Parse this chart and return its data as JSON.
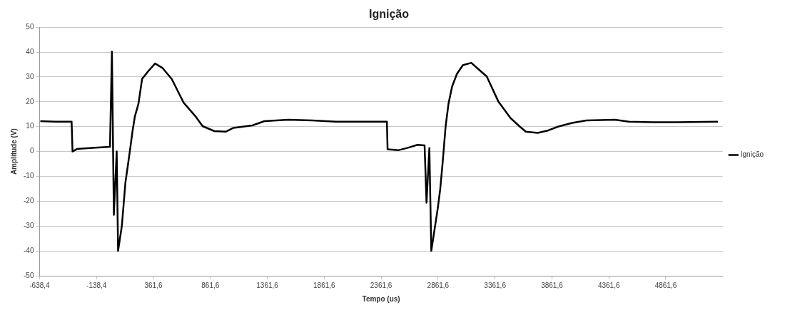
{
  "chart_data": {
    "type": "line",
    "title": "Ignição",
    "xlabel": "Tempo (us)",
    "ylabel": "Amplitude (V)",
    "x": [
      -632,
      -500,
      -357,
      -349,
      -311,
      -150,
      -20,
      -3,
      14,
      39,
      51,
      84,
      116,
      139,
      160,
      178,
      199,
      230,
      262,
      314,
      376,
      439,
      522,
      626,
      730,
      793,
      897,
      1000,
      1064,
      1230,
      1336,
      1546,
      1756,
      1966,
      2176,
      2412,
      2418,
      2512,
      2596,
      2680,
      2743,
      2760,
      2785,
      2802,
      2859,
      2880,
      2901,
      2928,
      2953,
      2985,
      3027,
      3079,
      3153,
      3226,
      3289,
      3390,
      3497,
      3580,
      3632,
      3737,
      3830,
      3914,
      4039,
      4164,
      4414,
      4538,
      4747,
      4955,
      5320
    ],
    "series": [
      {
        "name": "Ignição",
        "color": "#000000",
        "values": [
          12.2,
          12,
          12,
          0,
          1,
          1.5,
          1.9,
          40.2,
          -25.5,
          0,
          -40,
          -30,
          -12.3,
          -5,
          2,
          8.2,
          14.2,
          19.2,
          29.2,
          32.2,
          35.4,
          33.7,
          29.2,
          19.7,
          14.2,
          10.2,
          8.2,
          8,
          9.5,
          10.5,
          12.2,
          12.8,
          12.5,
          12,
          12,
          12,
          0.9,
          0.5,
          1.5,
          2.7,
          2.5,
          -20.6,
          1.4,
          -40,
          -22.8,
          -15.3,
          -4.8,
          10.2,
          19.2,
          26.2,
          31.2,
          34.7,
          35.7,
          32.7,
          30.2,
          20.2,
          13.5,
          10,
          8,
          7.5,
          8.5,
          10,
          11.5,
          12.5,
          12.8,
          12,
          11.8,
          11.8,
          12
        ]
      }
    ],
    "xlim": [
      -638.4,
      5361.6
    ],
    "xticks": [
      {
        "value": -638.4,
        "label": "-638,4"
      },
      {
        "value": -138.4,
        "label": "-138,4"
      },
      {
        "value": 361.6,
        "label": "361,6"
      },
      {
        "value": 861.6,
        "label": "861,6"
      },
      {
        "value": 1361.6,
        "label": "1361,6"
      },
      {
        "value": 1861.6,
        "label": "1861,6"
      },
      {
        "value": 2361.6,
        "label": "2361,6"
      },
      {
        "value": 2861.6,
        "label": "2861,6"
      },
      {
        "value": 3361.6,
        "label": "3361,6"
      },
      {
        "value": 3861.6,
        "label": "3861,6"
      },
      {
        "value": 4361.6,
        "label": "4361,6"
      },
      {
        "value": 4861.6,
        "label": "4861,6"
      }
    ],
    "ylim": [
      -50,
      50
    ],
    "yticks": [
      -50,
      -40,
      -30,
      -20,
      -10,
      0,
      10,
      20,
      30,
      40,
      50
    ],
    "grid": "y",
    "legend": "right",
    "marker": "none",
    "line_style": "solid"
  }
}
